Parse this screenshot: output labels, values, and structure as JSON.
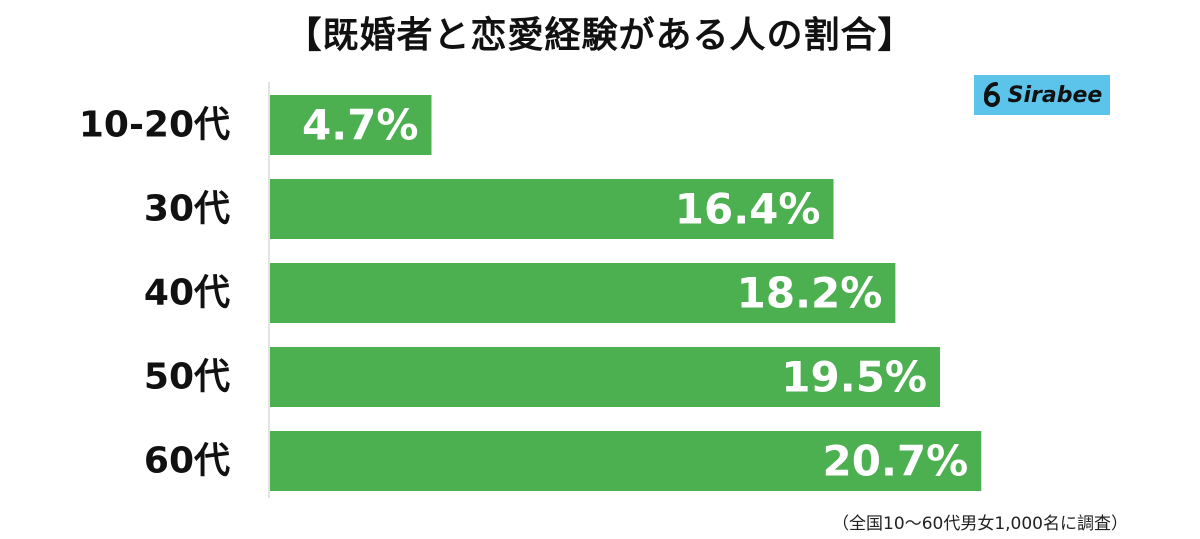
{
  "chart_data": {
    "type": "bar",
    "orientation": "horizontal",
    "title": "【既婚者と恋愛経験がある人の割合】",
    "categories": [
      "10-20代",
      "30代",
      "40代",
      "50代",
      "60代"
    ],
    "values": [
      4.7,
      16.4,
      18.2,
      19.5,
      20.7
    ],
    "value_labels": [
      "4.7%",
      "16.4%",
      "18.2%",
      "19.5%",
      "20.7%"
    ],
    "unit": "%",
    "xlim": [
      0,
      25
    ],
    "grid": false,
    "legend": "none",
    "bar_color": "#4caf50",
    "label_color": "#ffffff"
  },
  "logo": {
    "text": "Sirabee",
    "icon": "sirabee-s-logo-icon",
    "background": "#5cc3ea"
  },
  "footnote": "（全国10〜60代男女1,000名に調査）"
}
